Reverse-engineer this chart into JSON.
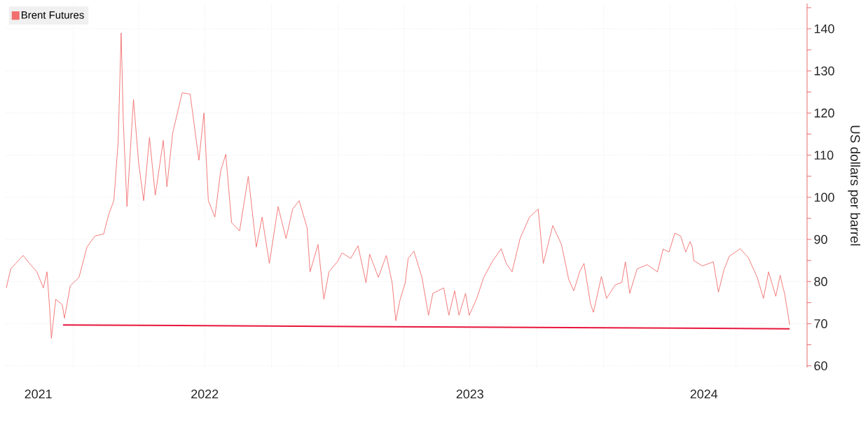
{
  "chart_data": {
    "type": "line",
    "ylabel": "US dollars per barrel",
    "xlim": [
      "2021-09-30",
      "2024-10-07"
    ],
    "ylim": [
      59.6,
      146
    ],
    "xticks": [
      {
        "value": "2021-11-14",
        "label": "2021"
      },
      {
        "value": "2022-01-01",
        "label": null
      },
      {
        "value": "2022-04-01",
        "label": null
      },
      {
        "value": "2022-07-01",
        "label": "2022"
      },
      {
        "value": "2022-10-01",
        "label": null
      },
      {
        "value": "2023-01-01",
        "label": null
      },
      {
        "value": "2023-04-01",
        "label": null
      },
      {
        "value": "2023-07-01",
        "label": "2023"
      },
      {
        "value": "2023-10-01",
        "label": null
      },
      {
        "value": "2024-01-01",
        "label": null
      },
      {
        "value": "2024-04-01",
        "label": null
      },
      {
        "value": "2024-05-18",
        "label": "2024"
      },
      {
        "value": "2024-07-01",
        "label": null
      }
    ],
    "yticks": [
      60,
      {
        "value": 65,
        "label": null
      },
      70,
      {
        "value": 75,
        "label": null
      },
      80,
      {
        "value": 85,
        "label": null
      },
      90,
      {
        "value": 95,
        "label": null
      },
      100,
      {
        "value": 105,
        "label": null
      },
      110,
      {
        "value": 115,
        "label": null
      },
      120,
      {
        "value": 125,
        "label": null
      },
      130,
      {
        "value": 135,
        "label": null
      },
      140,
      {
        "value": 145,
        "label": null
      }
    ],
    "grid": true,
    "legend": "top left",
    "series": [
      {
        "name": "Brent Futures",
        "color": "#f26d6d",
        "x": [
          "2021-10-01",
          "2021-10-07",
          "2021-10-14",
          "2021-10-24",
          "2021-11-02",
          "2021-11-12",
          "2021-11-21",
          "2021-11-26",
          "2021-11-30",
          "2021-12-02",
          "2021-12-08",
          "2021-12-17",
          "2021-12-20",
          "2021-12-28",
          "2022-01-09",
          "2022-01-20",
          "2022-01-31",
          "2022-02-12",
          "2022-02-19",
          "2022-02-26",
          "2022-03-04",
          "2022-03-08",
          "2022-03-11",
          "2022-03-16",
          "2022-03-25",
          "2022-04-01",
          "2022-04-08",
          "2022-04-16",
          "2022-04-24",
          "2022-05-05",
          "2022-05-10",
          "2022-05-18",
          "2022-05-31",
          "2022-06-11",
          "2022-06-23",
          "2022-06-30",
          "2022-07-06",
          "2022-07-15",
          "2022-07-23",
          "2022-07-30",
          "2022-08-07",
          "2022-08-18",
          "2022-08-30",
          "2022-09-10",
          "2022-09-18",
          "2022-09-28",
          "2022-10-10",
          "2022-10-21",
          "2022-10-30",
          "2022-11-08",
          "2022-11-19",
          "2022-11-23",
          "2022-12-04",
          "2022-12-12",
          "2022-12-19",
          "2022-12-31",
          "2023-01-06",
          "2023-01-18",
          "2023-01-28",
          "2023-02-08",
          "2023-02-13",
          "2023-02-25",
          "2023-03-08",
          "2023-03-16",
          "2023-03-21",
          "2023-03-27",
          "2023-04-03",
          "2023-04-07",
          "2023-04-15",
          "2023-04-26",
          "2023-05-05",
          "2023-05-11",
          "2023-05-26",
          "2023-06-02",
          "2023-06-10",
          "2023-06-16",
          "2023-06-25",
          "2023-06-30",
          "2023-07-10",
          "2023-07-20",
          "2023-08-01",
          "2023-08-13",
          "2023-08-20",
          "2023-08-28",
          "2023-09-08",
          "2023-09-21",
          "2023-10-03",
          "2023-10-10",
          "2023-10-23",
          "2023-11-04",
          "2023-11-14",
          "2023-11-21",
          "2023-11-29",
          "2023-12-05",
          "2023-12-14",
          "2023-12-18",
          "2023-12-29",
          "2024-01-05",
          "2024-01-17",
          "2024-01-26",
          "2024-01-31",
          "2024-02-06",
          "2024-02-16",
          "2024-03-01",
          "2024-03-15",
          "2024-03-23",
          "2024-03-31",
          "2024-04-08",
          "2024-04-16",
          "2024-04-23",
          "2024-04-29",
          "2024-05-02",
          "2024-05-04",
          "2024-05-16",
          "2024-05-31",
          "2024-06-07",
          "2024-06-15",
          "2024-06-22",
          "2024-07-07",
          "2024-07-18",
          "2024-07-30",
          "2024-08-08",
          "2024-08-15",
          "2024-08-25",
          "2024-08-31",
          "2024-09-03",
          "2024-09-06",
          "2024-09-11",
          "2024-09-13"
        ],
        "values": [
          78.5,
          83,
          84.3,
          86.2,
          84.3,
          82.3,
          78.5,
          82.3,
          72.7,
          66.5,
          75.8,
          74.5,
          71.3,
          79,
          81,
          88.2,
          90.8,
          91.3,
          96,
          99.2,
          113.5,
          139,
          118,
          97.8,
          123.2,
          108.3,
          99.2,
          114.2,
          100.5,
          113.5,
          102.5,
          115.3,
          124.8,
          124.5,
          108.8,
          120,
          99.2,
          95.3,
          106.3,
          110.2,
          94,
          92,
          105,
          88.2,
          95.3,
          84.3,
          97.8,
          90.2,
          97.2,
          99.2,
          92.7,
          82.3,
          88.8,
          75.8,
          82.3,
          84.8,
          86.8,
          85.5,
          88.5,
          79.7,
          86.5,
          81,
          86.2,
          79.7,
          70.7,
          75.8,
          79.7,
          85.5,
          87.2,
          81,
          72,
          77.2,
          78.5,
          72,
          77.8,
          72,
          77.2,
          72,
          75.8,
          81,
          84.8,
          87.8,
          84.3,
          82.3,
          90.2,
          95.3,
          97.2,
          84.3,
          93.3,
          88.8,
          80.5,
          77.8,
          82.3,
          84.3,
          74.7,
          72.7,
          81.2,
          76,
          79.2,
          79.8,
          84.7,
          77.2,
          83,
          84,
          82.3,
          87.7,
          87,
          91.5,
          90.8,
          87,
          89.5,
          88.2,
          85,
          83.7,
          84.7,
          77.5,
          83,
          86,
          87.8,
          85.7,
          81.2,
          76,
          82.3,
          76.5,
          81.5,
          79.2,
          77.2,
          72,
          69.7
        ]
      },
      {
        "type": "line",
        "color": "#e8163c",
        "x": [
          "2021-12-18",
          "2024-09-13"
        ],
        "values": [
          69.7,
          68.8
        ]
      }
    ]
  }
}
